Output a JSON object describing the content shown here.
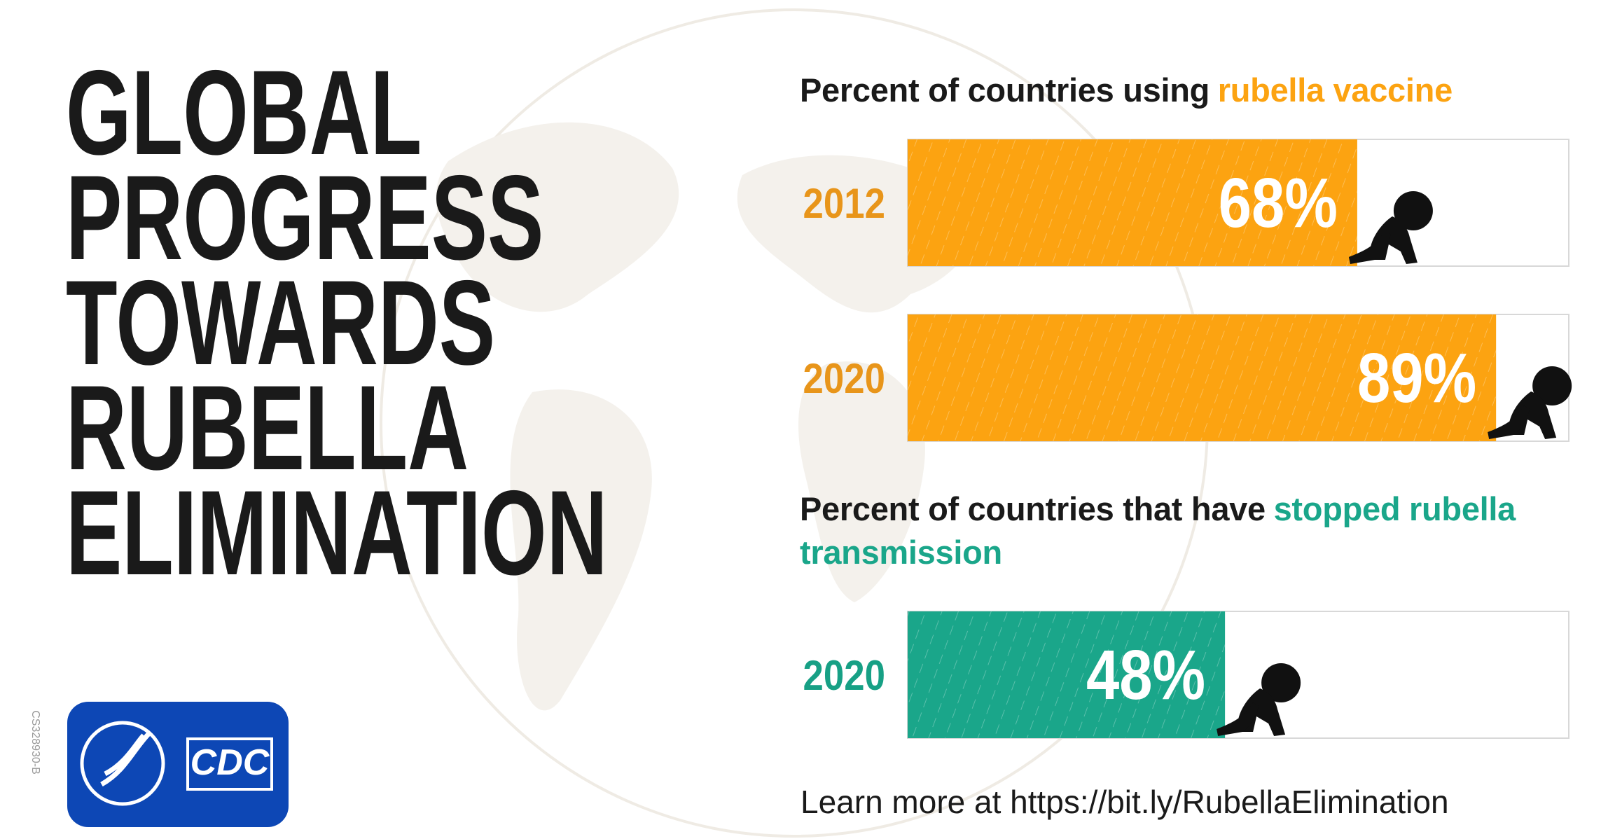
{
  "header": {
    "title_lines": [
      "GLOBAL",
      "PROGRESS",
      "TOWARDS",
      "RUBELLA",
      "ELIMINATION"
    ],
    "code": "CS328930-B",
    "logo": "CDC"
  },
  "chart_data": [
    {
      "type": "bar",
      "orientation": "horizontal",
      "title": "Percent of countries using",
      "title_highlight": "rubella vaccine",
      "categories": [
        "2012",
        "2020"
      ],
      "values": [
        68,
        89
      ],
      "value_labels": [
        "68%",
        "89%"
      ],
      "color": "#fca311",
      "label_color": "#e8951a",
      "xlim": [
        0,
        100
      ]
    },
    {
      "type": "bar",
      "orientation": "horizontal",
      "title": "Percent of countries that have",
      "title_highlight": "stopped rubella transmission",
      "categories": [
        "2020"
      ],
      "values": [
        48
      ],
      "value_labels": [
        "48%"
      ],
      "color": "#1aa68a",
      "label_color": "#17a085",
      "xlim": [
        0,
        100
      ]
    }
  ],
  "footer": "Learn more at https://bit.ly/RubellaElimination"
}
